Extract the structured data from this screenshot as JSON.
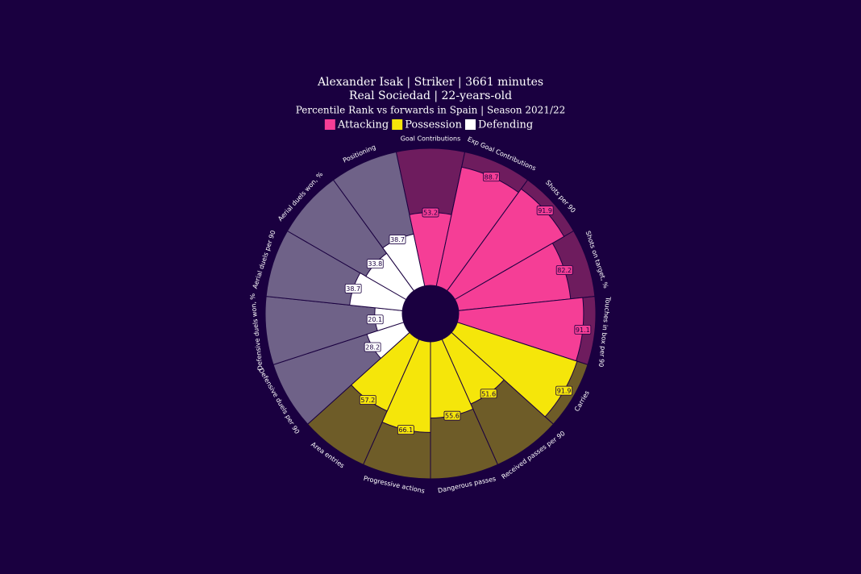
{
  "chart_data": {
    "type": "pizza",
    "title": "Alexander Isak | Striker | 3661 minutes",
    "subtitle": "Real Sociedad | 22-years-old",
    "caption": "Percentile Rank vs forwards in Spain | Season 2021/22",
    "rlim": [
      0,
      100
    ],
    "series": [
      {
        "name": "Attacking",
        "color": "#f53e96",
        "background": "#6e1c5e",
        "categories": [
          "Goal Contributions",
          "Exp Goal Contributions",
          "Shots per 90",
          "Shots on target, %",
          "Touches in box per 90"
        ],
        "values": [
          53.2,
          88.7,
          91.9,
          82.2,
          91.1
        ]
      },
      {
        "name": "Possession",
        "color": "#f5e60a",
        "background": "#6e5c28",
        "categories": [
          "Carries",
          "Received passes per 90",
          "Dangerous passes",
          "Progressive actions",
          "Area entries"
        ],
        "values": [
          91.9,
          51.6,
          55.6,
          66.1,
          57.2
        ]
      },
      {
        "name": "Defending",
        "color": "#ffffff",
        "background": "#6f6288",
        "categories": [
          "Defensive duels per 90",
          "Defensive duels won, %",
          "Aerial duels per 90",
          "Aerial duels won, %",
          "Positioning"
        ],
        "values": [
          28.2,
          20.1,
          38.7,
          33.8,
          38.7
        ]
      }
    ]
  }
}
